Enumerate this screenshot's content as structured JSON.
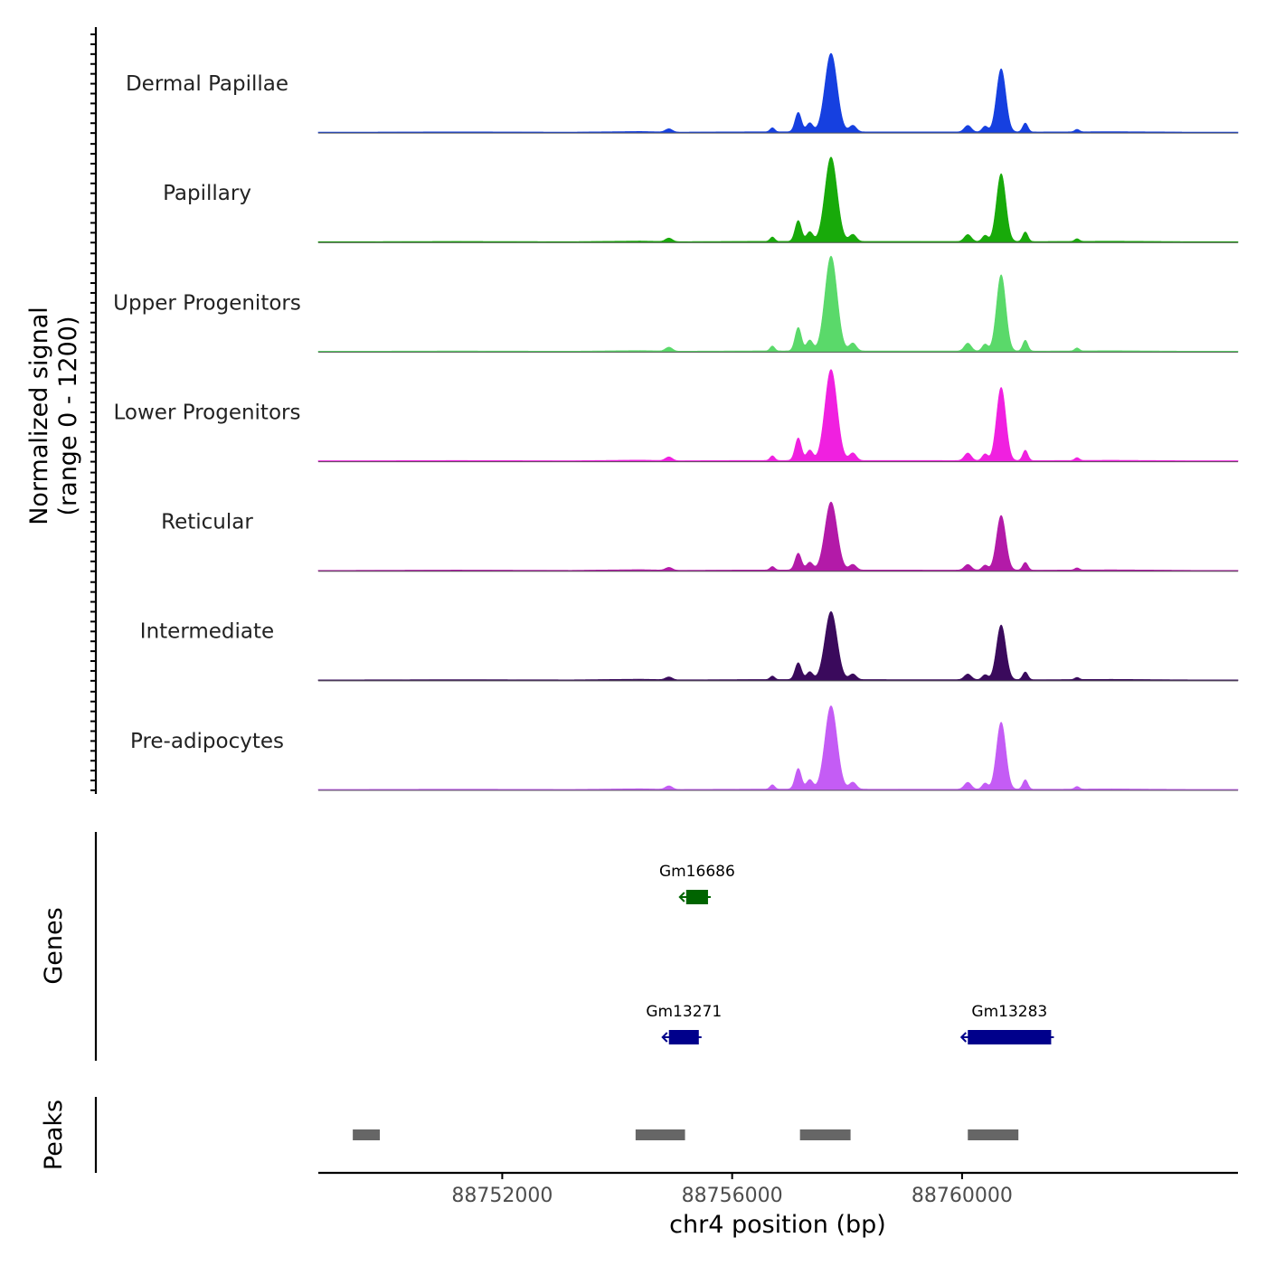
{
  "chart_data": {
    "type": "area",
    "chromosome": "chr4",
    "xlabel": "chr4 position (bp)",
    "xlim": [
      88748800,
      88764800
    ],
    "x_ticks": [
      {
        "value": 88752000,
        "label": "88752000"
      },
      {
        "value": 88756000,
        "label": "88756000"
      },
      {
        "value": 88760000,
        "label": "88760000"
      }
    ],
    "coverage": {
      "ylabel_line1": "Normalized signal",
      "ylabel_line2": "(range 0 - 1200)",
      "ylim": [
        0,
        1200
      ],
      "profile": {
        "baseline": [
          [
            88749400,
            12
          ],
          [
            88751200,
            15
          ],
          [
            88753200,
            12
          ],
          [
            88754400,
            20
          ],
          [
            88755000,
            12
          ],
          [
            88756400,
            16
          ],
          [
            88761400,
            14
          ],
          [
            88762600,
            18
          ],
          [
            88764000,
            12
          ]
        ],
        "bumps": [
          {
            "center": 88754900,
            "width": 60,
            "height": 0.04
          },
          {
            "center": 88756700,
            "width": 40,
            "height": 0.05
          },
          {
            "center": 88757150,
            "width": 55,
            "height": 0.24
          },
          {
            "center": 88757350,
            "width": 55,
            "height": 0.11
          },
          {
            "center": 88757720,
            "width": 105,
            "height": 0.97
          },
          {
            "center": 88758100,
            "width": 60,
            "height": 0.08
          },
          {
            "center": 88760100,
            "width": 60,
            "height": 0.08
          },
          {
            "center": 88760400,
            "width": 50,
            "height": 0.07
          },
          {
            "center": 88760680,
            "width": 80,
            "height": 0.78
          },
          {
            "center": 88761100,
            "width": 45,
            "height": 0.11
          },
          {
            "center": 88762000,
            "width": 40,
            "height": 0.03
          }
        ]
      },
      "tracks": [
        {
          "name": "Dermal Papillae",
          "color": "#1640e0",
          "scale": 0.82
        },
        {
          "name": "Papillary",
          "color": "#18aa0a",
          "scale": 0.88
        },
        {
          "name": "Upper Progenitors",
          "color": "#5ad96a",
          "scale": 0.99
        },
        {
          "name": "Lower Progenitors",
          "color": "#f020e0",
          "scale": 0.95
        },
        {
          "name": "Reticular",
          "color": "#b31aa8",
          "scale": 0.71
        },
        {
          "name": "Intermediate",
          "color": "#3a0a5c",
          "scale": 0.71
        },
        {
          "name": "Pre-adipocytes",
          "color": "#c45cf5",
          "scale": 0.87
        }
      ]
    },
    "genes": {
      "ylabel": "Genes",
      "items": [
        {
          "name": "Gm16686",
          "start": 88755200,
          "end": 88755580,
          "strand": "-",
          "row": 1,
          "color": "#006400"
        },
        {
          "name": "Gm13271",
          "start": 88754900,
          "end": 88755420,
          "strand": "-",
          "row": 2,
          "color": "#00008b"
        },
        {
          "name": "Gm13283",
          "start": 88760100,
          "end": 88761550,
          "strand": "-",
          "row": 2,
          "color": "#00008b"
        }
      ]
    },
    "peaks": {
      "ylabel": "Peaks",
      "color": "#666666",
      "items": [
        {
          "start": 88749400,
          "end": 88749870
        },
        {
          "start": 88754320,
          "end": 88755180
        },
        {
          "start": 88757180,
          "end": 88758060
        },
        {
          "start": 88760100,
          "end": 88760980
        }
      ]
    }
  }
}
